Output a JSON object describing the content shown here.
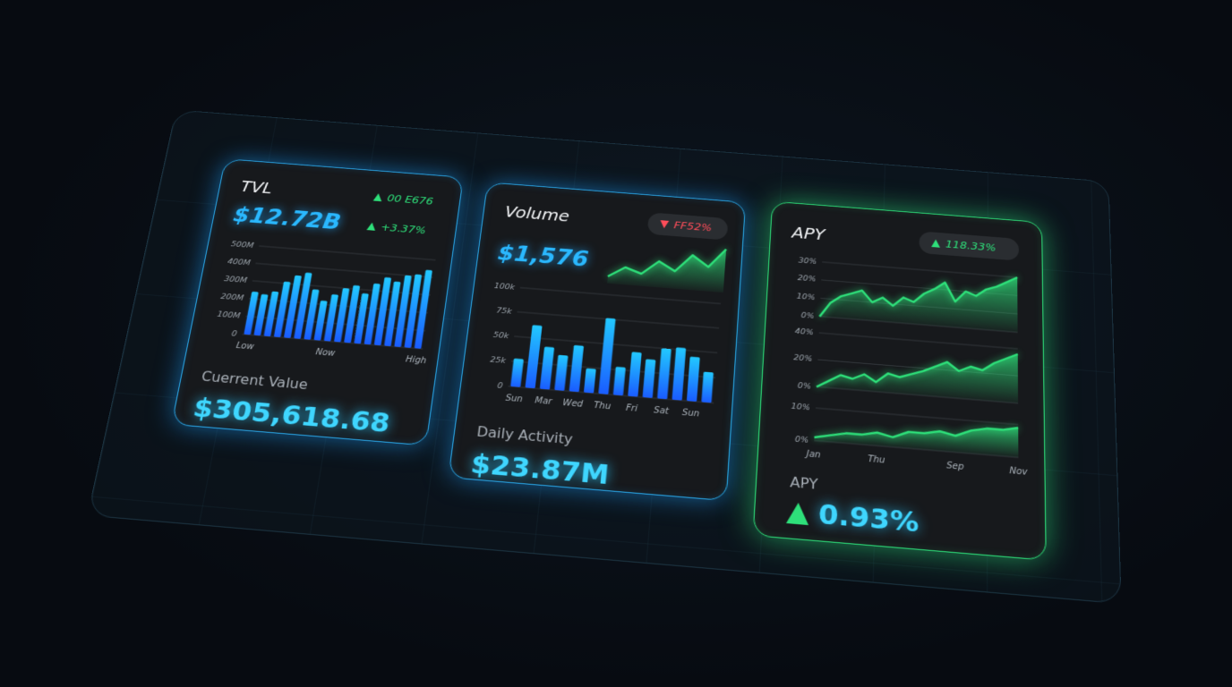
{
  "cards": [
    {
      "title": "TVL",
      "badge": {
        "text": "00 E676",
        "trend": "up",
        "color": "#2ee07a"
      },
      "value": "$12.72B",
      "change": {
        "text": "+3.37%",
        "trend": "up",
        "color": "#2ee07a"
      },
      "chart": {
        "type": "bar",
        "categories": [
          "Low",
          null,
          null,
          null,
          null,
          null,
          null,
          null,
          "Now",
          null,
          null,
          null,
          null,
          null,
          null,
          null,
          null,
          "High"
        ],
        "values": [
          240,
          230,
          250,
          310,
          350,
          370,
          280,
          220,
          260,
          300,
          320,
          280,
          340,
          380,
          360,
          400,
          410,
          440
        ],
        "ylim": [
          0,
          500
        ],
        "yticks": [
          0,
          {
            "value": 100,
            "label": "100M"
          },
          {
            "value": 200,
            "label": "200M"
          },
          {
            "value": 300,
            "label": "300M"
          },
          {
            "value": 400,
            "label": "400M"
          },
          {
            "value": 500,
            "label": "500M"
          }
        ],
        "grid": true,
        "color": "#1fa6ff"
      },
      "footer_label": "Cuerrent Value",
      "footer_value": "$305,618.68"
    },
    {
      "title": "Volume",
      "badge": {
        "text": "FF52%",
        "trend": "down",
        "color": "#ff4d5a"
      },
      "value": "$1,576",
      "sparkline": {
        "type": "area",
        "values": [
          8,
          20,
          14,
          30,
          20,
          40,
          28,
          50
        ],
        "ylim": [
          0,
          55
        ],
        "color": "#2ee07a"
      },
      "chart": {
        "type": "bar",
        "categories": [
          "Sun",
          null,
          "Mar",
          null,
          "Wed",
          null,
          "Thu",
          null,
          "Fri",
          null,
          "Sat",
          null,
          "Sun",
          null
        ],
        "values": [
          28,
          63,
          42,
          35,
          46,
          24,
          76,
          28,
          44,
          38,
          50,
          52,
          44,
          30
        ],
        "ylim": [
          0,
          100
        ],
        "yticks": [
          0,
          {
            "value": 25,
            "label": "25k"
          },
          {
            "value": 50,
            "label": "50k"
          },
          {
            "value": 75,
            "label": "75k"
          },
          {
            "value": 100,
            "label": "100k"
          }
        ],
        "grid": true,
        "color": "#1fa6ff"
      },
      "footer_label": "Daily Activity",
      "footer_value": "$23.87M"
    },
    {
      "title": "APY",
      "badge": {
        "text": "118.33%",
        "trend": "up",
        "color": "#2ee07a"
      },
      "charts": [
        {
          "type": "area",
          "values": [
            0,
            8,
            12,
            14,
            16,
            10,
            13,
            9,
            14,
            12,
            17,
            20,
            24,
            14,
            20,
            18,
            22,
            24,
            27,
            30
          ],
          "ylim": [
            0,
            30
          ],
          "yticks": [
            {
              "value": 0,
              "label": "0%"
            },
            {
              "value": 10,
              "label": "10%"
            },
            {
              "value": 20,
              "label": "20%"
            },
            {
              "value": 30,
              "label": "30%"
            }
          ],
          "grid": true,
          "color": "#2ee07a"
        },
        {
          "type": "area",
          "values": [
            0,
            5,
            10,
            8,
            12,
            7,
            14,
            12,
            15,
            18,
            22,
            26,
            20,
            24,
            22,
            28,
            32,
            36
          ],
          "ylim": [
            0,
            40
          ],
          "yticks": [
            {
              "value": 0,
              "label": "0%"
            },
            {
              "value": 20,
              "label": "20%"
            },
            {
              "value": 40,
              "label": "40%"
            }
          ],
          "grid": true,
          "color": "#2ee07a"
        },
        {
          "type": "area",
          "categories": [
            "Jan",
            null,
            null,
            null,
            "Thu",
            null,
            null,
            null,
            null,
            "Sep",
            null,
            null,
            null,
            "Nov"
          ],
          "values": [
            1,
            2,
            3,
            3,
            4,
            3,
            5,
            5,
            6,
            5,
            7,
            8,
            8,
            9
          ],
          "ylim": [
            0,
            10
          ],
          "yticks": [
            {
              "value": 0,
              "label": "0%"
            },
            {
              "value": 10,
              "label": "10%"
            }
          ],
          "grid": true,
          "color": "#2ee07a"
        }
      ],
      "footer_label": "APY",
      "footer_value": {
        "text": "0.93%",
        "trend": "up",
        "color": "#2ee07a"
      }
    }
  ]
}
